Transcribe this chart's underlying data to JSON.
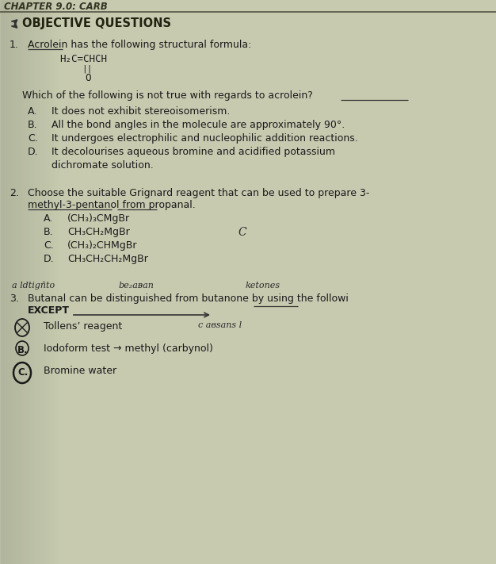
{
  "bg_color": "#c8cab0",
  "text_color": "#1a1a1a",
  "header": "CHAPTER 9.0: CARB",
  "section_title": "OBJECTIVE QUESTIONS",
  "q1_num": "1.",
  "q1_intro": "Acrolein has the following structural formula:",
  "q1_formula": "H₂C=CHCH",
  "q1_formula_bond": "||",
  "q1_formula_O": "O",
  "q1_question": "Which of the following is not true with regards to acrolein?",
  "q1_A": "It does not exhibit stereoisomerism.",
  "q1_B": "All the bond angles in the molecule are approximately 90°.",
  "q1_C": "It undergoes electrophilic and nucleophilic addition reactions.",
  "q1_D1": "It decolourises aqueous bromine and acidified potassium",
  "q1_D2": "dichromate solution.",
  "q2_num": "2.",
  "q2_line1": "Choose the suitable Grignard reagent that can be used to prepare 3-",
  "q2_line2": "methyl-3-pentanol from propanal.",
  "q2_A": "(CH₃)₃CMgBr",
  "q2_B": "CH₃CH₂MgBr",
  "q2_C": "(CH₃)₂CHMgBr",
  "q2_D": "CH₃CH₂CH₂MgBr",
  "q2_C_note": "C",
  "q3_num": "3.",
  "q3_hw1": "a ldtign̄to",
  "q3_hw2": "be₂aᴃan",
  "q3_hw3": "ketones",
  "q3_line1": "Butanal can be distinguished from butanone by using the followi",
  "q3_line2": "EXCEPT",
  "q3_A": "Tollens’ reagent",
  "q3_A_note": "c авѕanѕ l",
  "q3_B": "Iodoform test → methyl (carbynol)",
  "q3_C": "Bromine water",
  "underline_color": "#333333",
  "arrow_color": "#333333"
}
